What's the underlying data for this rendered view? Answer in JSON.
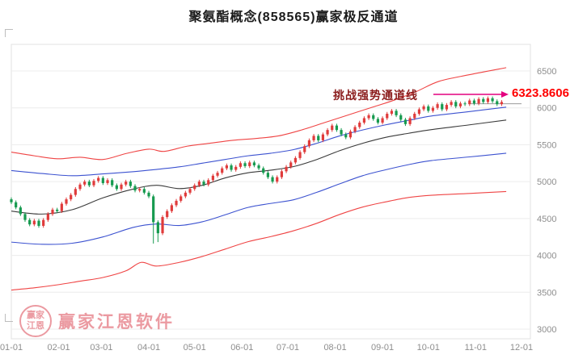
{
  "title": "聚氨酯概念(858565)赢家极反通道",
  "annotation": {
    "label": "挑战强势通道线",
    "value": "6323.8606",
    "arrow_color": "#e4007f",
    "label_color": "#8b1d1d",
    "value_color": "#ff0000"
  },
  "watermark": {
    "logo_line1": "赢家",
    "logo_line2": "江恩",
    "brand": "赢家江恩软件"
  },
  "chart_data": {
    "type": "candlestick",
    "title": "聚氨酯概念(858565)赢家极反通道",
    "x_axis": {
      "ticks": [
        {
          "label": "01-01",
          "day": 0
        },
        {
          "label": "02-01",
          "day": 31
        },
        {
          "label": "03-01",
          "day": 59
        },
        {
          "label": "04-01",
          "day": 90
        },
        {
          "label": "05-01",
          "day": 120
        },
        {
          "label": "06-01",
          "day": 151
        },
        {
          "label": "07-01",
          "day": 181
        },
        {
          "label": "08-01",
          "day": 212
        },
        {
          "label": "09-01",
          "day": 243
        },
        {
          "label": "10-01",
          "day": 273
        },
        {
          "label": "11-01",
          "day": 304
        },
        {
          "label": "12-01",
          "day": 334
        }
      ]
    },
    "y_axis": {
      "ticks": [
        6500,
        6000,
        5500,
        5000,
        4500,
        4000,
        3500,
        3000
      ],
      "min": 3000,
      "max": 6500,
      "grid": true
    },
    "legend": "none",
    "colors": {
      "up": "#e03b3b",
      "down": "#169a4f"
    },
    "candles": {
      "start_day": 0,
      "step_days": 3,
      "ohlc": [
        [
          4760,
          4785,
          4695,
          4720
        ],
        [
          4720,
          4745,
          4625,
          4650
        ],
        [
          4650,
          4675,
          4535,
          4560
        ],
        [
          4560,
          4585,
          4455,
          4480
        ],
        [
          4480,
          4505,
          4395,
          4420
        ],
        [
          4420,
          4495,
          4395,
          4470
        ],
        [
          4470,
          4495,
          4375,
          4400
        ],
        [
          4400,
          4505,
          4375,
          4480
        ],
        [
          4480,
          4585,
          4455,
          4560
        ],
        [
          4560,
          4645,
          4535,
          4620
        ],
        [
          4620,
          4645,
          4575,
          4600
        ],
        [
          4600,
          4725,
          4575,
          4700
        ],
        [
          4700,
          4785,
          4675,
          4760
        ],
        [
          4760,
          4845,
          4735,
          4820
        ],
        [
          4820,
          4925,
          4795,
          4900
        ],
        [
          4900,
          4985,
          4875,
          4960
        ],
        [
          4960,
          5025,
          4935,
          5000
        ],
        [
          5000,
          5025,
          4925,
          4950
        ],
        [
          4950,
          5035,
          4925,
          5010
        ],
        [
          5010,
          5075,
          4985,
          5050
        ],
        [
          5050,
          5075,
          4955,
          4980
        ],
        [
          4980,
          5045,
          4955,
          5020
        ],
        [
          5020,
          5045,
          4925,
          4950
        ],
        [
          4950,
          4975,
          4875,
          4900
        ],
        [
          4900,
          4985,
          4875,
          4960
        ],
        [
          4960,
          5025,
          4935,
          5000
        ],
        [
          5000,
          5025,
          4915,
          4940
        ],
        [
          4940,
          4965,
          4855,
          4880
        ],
        [
          4880,
          4925,
          4855,
          4900
        ],
        [
          4900,
          4925,
          4825,
          4850
        ],
        [
          4850,
          4875,
          4775,
          4800
        ],
        [
          4800,
          4825,
          4160,
          4450
        ],
        [
          4450,
          4475,
          4180,
          4300
        ],
        [
          4300,
          4545,
          4275,
          4520
        ],
        [
          4520,
          4625,
          4495,
          4600
        ],
        [
          4600,
          4705,
          4575,
          4680
        ],
        [
          4680,
          4765,
          4655,
          4740
        ],
        [
          4740,
          4825,
          4715,
          4800
        ],
        [
          4800,
          4875,
          4775,
          4850
        ],
        [
          4850,
          4925,
          4825,
          4900
        ],
        [
          4900,
          4975,
          4875,
          4950
        ],
        [
          4950,
          5025,
          4925,
          5000
        ],
        [
          5000,
          5025,
          4935,
          4960
        ],
        [
          4960,
          5045,
          4935,
          5020
        ],
        [
          5020,
          5105,
          4995,
          5080
        ],
        [
          5080,
          5145,
          5055,
          5120
        ],
        [
          5120,
          5205,
          5095,
          5180
        ],
        [
          5180,
          5245,
          5155,
          5220
        ],
        [
          5220,
          5245,
          5135,
          5160
        ],
        [
          5160,
          5225,
          5135,
          5200
        ],
        [
          5200,
          5275,
          5175,
          5250
        ],
        [
          5250,
          5275,
          5185,
          5210
        ],
        [
          5210,
          5285,
          5185,
          5260
        ],
        [
          5260,
          5285,
          5195,
          5220
        ],
        [
          5220,
          5245,
          5155,
          5180
        ],
        [
          5180,
          5205,
          5095,
          5120
        ],
        [
          5120,
          5145,
          5035,
          5060
        ],
        [
          5060,
          5085,
          4975,
          5000
        ],
        [
          5000,
          5085,
          4975,
          5060
        ],
        [
          5060,
          5165,
          5035,
          5140
        ],
        [
          5140,
          5225,
          5115,
          5200
        ],
        [
          5200,
          5285,
          5175,
          5260
        ],
        [
          5260,
          5345,
          5235,
          5320
        ],
        [
          5320,
          5425,
          5295,
          5400
        ],
        [
          5400,
          5505,
          5375,
          5480
        ],
        [
          5480,
          5585,
          5455,
          5560
        ],
        [
          5560,
          5645,
          5535,
          5620
        ],
        [
          5620,
          5645,
          5535,
          5560
        ],
        [
          5560,
          5665,
          5535,
          5640
        ],
        [
          5640,
          5725,
          5615,
          5700
        ],
        [
          5700,
          5785,
          5675,
          5760
        ],
        [
          5760,
          5785,
          5675,
          5700
        ],
        [
          5700,
          5725,
          5615,
          5640
        ],
        [
          5640,
          5665,
          5575,
          5600
        ],
        [
          5600,
          5705,
          5575,
          5680
        ],
        [
          5680,
          5765,
          5655,
          5740
        ],
        [
          5740,
          5825,
          5715,
          5800
        ],
        [
          5800,
          5885,
          5775,
          5860
        ],
        [
          5860,
          5925,
          5835,
          5900
        ],
        [
          5900,
          5925,
          5825,
          5850
        ],
        [
          5850,
          5875,
          5775,
          5800
        ],
        [
          5800,
          5885,
          5775,
          5860
        ],
        [
          5860,
          5945,
          5835,
          5920
        ],
        [
          5920,
          5985,
          5895,
          5960
        ],
        [
          5960,
          5985,
          5875,
          5900
        ],
        [
          5900,
          5925,
          5815,
          5840
        ],
        [
          5840,
          5865,
          5755,
          5780
        ],
        [
          5780,
          5885,
          5755,
          5860
        ],
        [
          5860,
          5945,
          5835,
          5920
        ],
        [
          5920,
          6005,
          5895,
          5980
        ],
        [
          5980,
          6045,
          5955,
          6020
        ],
        [
          6020,
          6045,
          5935,
          5960
        ],
        [
          5960,
          6025,
          5935,
          6000
        ],
        [
          6000,
          6075,
          5975,
          6050
        ],
        [
          6050,
          6075,
          5955,
          5980
        ],
        [
          5980,
          6065,
          5955,
          6040
        ],
        [
          6040,
          6105,
          6015,
          6080
        ],
        [
          6080,
          6105,
          5995,
          6020
        ],
        [
          6020,
          6085,
          5995,
          6060
        ],
        [
          6060,
          6085,
          6025,
          6050
        ],
        [
          6050,
          6125,
          6025,
          6100
        ],
        [
          6100,
          6125,
          6035,
          6060
        ],
        [
          6060,
          6145,
          6035,
          6120
        ],
        [
          6120,
          6145,
          6055,
          6080
        ],
        [
          6080,
          6155,
          6055,
          6130
        ],
        [
          6130,
          6155,
          6065,
          6090
        ],
        [
          6090,
          6115,
          6025,
          6050
        ],
        [
          6050,
          6105,
          6025,
          6080
        ]
      ]
    },
    "lines": [
      {
        "name": "outer-upper-red",
        "color": "#ef4444",
        "points": [
          [
            0,
            5400
          ],
          [
            15,
            5350
          ],
          [
            30,
            5310
          ],
          [
            45,
            5330
          ],
          [
            60,
            5300
          ],
          [
            75,
            5380
          ],
          [
            90,
            5440
          ],
          [
            100,
            5410
          ],
          [
            115,
            5480
          ],
          [
            130,
            5520
          ],
          [
            145,
            5560
          ],
          [
            160,
            5585
          ],
          [
            175,
            5620
          ],
          [
            190,
            5700
          ],
          [
            205,
            5800
          ],
          [
            220,
            5900
          ],
          [
            235,
            6000
          ],
          [
            250,
            6100
          ],
          [
            265,
            6220
          ],
          [
            280,
            6360
          ],
          [
            300,
            6450
          ],
          [
            324,
            6545
          ]
        ]
      },
      {
        "name": "inner-upper-blue",
        "color": "#3c52d0",
        "points": [
          [
            0,
            5150
          ],
          [
            20,
            5110
          ],
          [
            40,
            5080
          ],
          [
            60,
            5105
          ],
          [
            80,
            5135
          ],
          [
            95,
            5165
          ],
          [
            110,
            5200
          ],
          [
            125,
            5250
          ],
          [
            140,
            5300
          ],
          [
            155,
            5350
          ],
          [
            170,
            5385
          ],
          [
            185,
            5435
          ],
          [
            200,
            5520
          ],
          [
            215,
            5620
          ],
          [
            230,
            5700
          ],
          [
            245,
            5770
          ],
          [
            260,
            5830
          ],
          [
            275,
            5890
          ],
          [
            300,
            5950
          ],
          [
            324,
            6010
          ]
        ]
      },
      {
        "name": "middle-black",
        "color": "#3a3a3a",
        "points": [
          [
            0,
            4600
          ],
          [
            20,
            4560
          ],
          [
            40,
            4620
          ],
          [
            60,
            4780
          ],
          [
            80,
            4900
          ],
          [
            95,
            4950
          ],
          [
            110,
            4905
          ],
          [
            125,
            4950
          ],
          [
            140,
            5050
          ],
          [
            155,
            5120
          ],
          [
            170,
            5155
          ],
          [
            185,
            5205
          ],
          [
            200,
            5300
          ],
          [
            215,
            5420
          ],
          [
            230,
            5520
          ],
          [
            245,
            5600
          ],
          [
            260,
            5655
          ],
          [
            275,
            5705
          ],
          [
            300,
            5770
          ],
          [
            324,
            5835
          ]
        ]
      },
      {
        "name": "inner-lower-blue",
        "color": "#3c52d0",
        "points": [
          [
            0,
            4180
          ],
          [
            20,
            4150
          ],
          [
            40,
            4165
          ],
          [
            60,
            4250
          ],
          [
            80,
            4380
          ],
          [
            95,
            4425
          ],
          [
            110,
            4405
          ],
          [
            125,
            4455
          ],
          [
            140,
            4550
          ],
          [
            155,
            4650
          ],
          [
            170,
            4705
          ],
          [
            185,
            4755
          ],
          [
            200,
            4855
          ],
          [
            215,
            4970
          ],
          [
            230,
            5080
          ],
          [
            245,
            5160
          ],
          [
            260,
            5230
          ],
          [
            275,
            5285
          ],
          [
            300,
            5335
          ],
          [
            324,
            5385
          ]
        ]
      },
      {
        "name": "outer-lower-red",
        "color": "#ef4444",
        "points": [
          [
            0,
            3530
          ],
          [
            15,
            3560
          ],
          [
            30,
            3600
          ],
          [
            45,
            3650
          ],
          [
            60,
            3700
          ],
          [
            75,
            3790
          ],
          [
            85,
            3905
          ],
          [
            95,
            3855
          ],
          [
            110,
            3905
          ],
          [
            125,
            3985
          ],
          [
            140,
            4085
          ],
          [
            155,
            4185
          ],
          [
            170,
            4255
          ],
          [
            185,
            4335
          ],
          [
            200,
            4435
          ],
          [
            215,
            4555
          ],
          [
            230,
            4655
          ],
          [
            245,
            4725
          ],
          [
            260,
            4785
          ],
          [
            275,
            4815
          ],
          [
            300,
            4840
          ],
          [
            324,
            4865
          ]
        ]
      }
    ],
    "ref_line": {
      "value": 6055,
      "from_day": 300,
      "to_day": 334,
      "color": "#9a9a9a"
    },
    "annotation": {
      "label": "挑战强势通道线",
      "value": "6323.8606"
    }
  }
}
